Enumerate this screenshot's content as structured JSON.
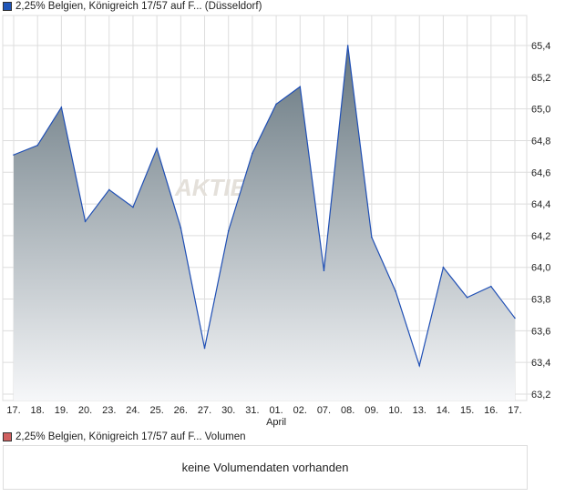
{
  "legend_main": "2,25% Belgien, Königreich 17/57 auf F... (Düsseldorf)",
  "legend_volume": "2,25% Belgien, Königreich 17/57 auf F... Volumen",
  "volume_message": "keine Volumendaten vorhanden",
  "watermark": "AKTIE",
  "colors": {
    "line": "#1f4fb5",
    "fill_top": "#66767f",
    "fill_bottom": "#f6f7f9",
    "grid": "#dddddd",
    "main_swatch": "#1f55b8",
    "volume_swatch": "#d06060"
  },
  "chart_data": {
    "type": "area",
    "title": "2,25% Belgien, Königreich 17/57 auf F... (Düsseldorf)",
    "categories": [
      "17.",
      "18.",
      "19.",
      "20.",
      "23.",
      "24.",
      "25.",
      "26.",
      "27.",
      "30.",
      "31.",
      "01.",
      "02.",
      "07.",
      "08.",
      "09.",
      "10.",
      "13.",
      "14.",
      "15.",
      "16.",
      "17."
    ],
    "month_label": "April",
    "month_label_index": 11,
    "values": [
      64.71,
      64.77,
      65.01,
      64.29,
      64.49,
      64.38,
      64.75,
      64.25,
      63.49,
      64.23,
      64.72,
      65.03,
      65.14,
      63.98,
      65.4,
      64.19,
      63.85,
      63.38,
      64.0,
      63.81,
      63.88,
      63.68
    ],
    "yticks": [
      "63,2",
      "63,4",
      "63,6",
      "63,8",
      "64,0",
      "64,2",
      "64,4",
      "64,6",
      "64,8",
      "65,0",
      "65,2",
      "65,4"
    ],
    "ylim": [
      63.2,
      65.4
    ],
    "y_axis_position": "right",
    "grid": true
  }
}
